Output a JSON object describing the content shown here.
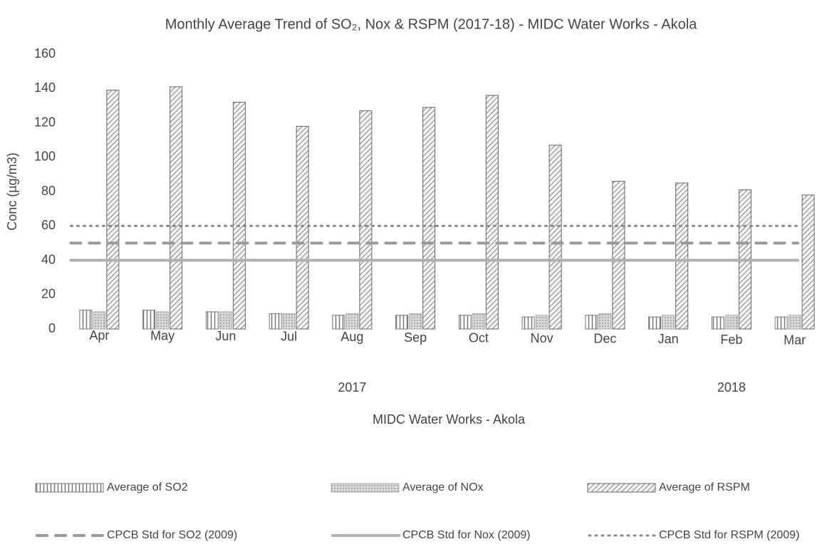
{
  "chart_data": {
    "type": "bar",
    "title": "Monthly Average Trend of SO₂, Nox & RSPM (2017-18) - MIDC Water Works - Akola",
    "xlabel": "MIDC Water Works - Akola",
    "ylabel": "Conc (µg/m3)",
    "categories": [
      "Apr",
      "May",
      "Jun",
      "Jul",
      "Aug",
      "Sep",
      "Oct",
      "Nov",
      "Dec",
      "Jan",
      "Feb",
      "Mar"
    ],
    "x_groups": [
      {
        "label": "2017",
        "span": [
          0,
          8
        ]
      },
      {
        "label": "2018",
        "span": [
          9,
          11
        ]
      }
    ],
    "ylim": [
      0,
      160
    ],
    "yticks": [
      0,
      20,
      40,
      60,
      80,
      100,
      120,
      140,
      160
    ],
    "grid": false,
    "legend": "bottom",
    "series": [
      {
        "name": "Average of SO2",
        "type": "bar",
        "color": "#777777",
        "pattern": "vertical",
        "values": [
          11,
          11,
          10,
          9,
          8,
          8,
          8,
          7,
          8,
          7,
          7,
          7
        ]
      },
      {
        "name": "Average of NOx",
        "type": "bar",
        "color": "#aaaaaa",
        "pattern": "dots",
        "values": [
          10,
          10,
          10,
          9,
          9,
          9,
          9,
          8,
          9,
          8,
          8,
          8
        ]
      },
      {
        "name": "Average of RSPM",
        "type": "bar",
        "color": "#666666",
        "pattern": "diagonal",
        "values": [
          139,
          141,
          132,
          118,
          127,
          129,
          136,
          107,
          86,
          85,
          81,
          78
        ]
      },
      {
        "name": "CPCB Std for SO2 (2009)",
        "type": "line",
        "color": "#999999",
        "dash": "dashed",
        "values": [
          50,
          50,
          50,
          50,
          50,
          50,
          50,
          50,
          50,
          50,
          50,
          50
        ]
      },
      {
        "name": "CPCB Std for Nox (2009)",
        "type": "line",
        "color": "#b0b0b0",
        "dash": "solid",
        "values": [
          40,
          40,
          40,
          40,
          40,
          40,
          40,
          40,
          40,
          40,
          40,
          40
        ]
      },
      {
        "name": "CPCB Std for RSPM (2009)",
        "type": "line",
        "color": "#888888",
        "dash": "dotted",
        "values": [
          60,
          60,
          60,
          60,
          60,
          60,
          60,
          60,
          60,
          60,
          60,
          60
        ]
      }
    ]
  }
}
